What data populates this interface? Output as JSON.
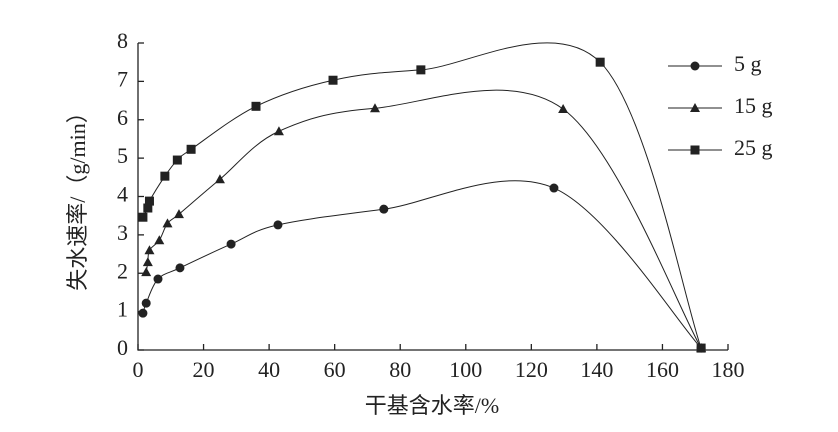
{
  "chart_data": {
    "type": "line",
    "x_label": "干基含水率/%",
    "y_label": "失水速率/（g/min）",
    "xlim": [
      0,
      180
    ],
    "xticks": [
      0,
      20,
      40,
      60,
      80,
      100,
      120,
      140,
      160,
      180
    ],
    "ylim": [
      0,
      8
    ],
    "yticks": [
      0,
      1,
      2,
      3,
      4,
      5,
      6,
      7,
      8
    ],
    "legend": "right",
    "series": [
      {
        "name": "5 g",
        "color": "#222222",
        "marker": "circle",
        "x": [
          1.5,
          2.5,
          6.1,
          12.8,
          28.4,
          42.7,
          75,
          126.9,
          171.8
        ],
        "values": [
          0.96,
          1.22,
          1.85,
          2.14,
          2.76,
          3.26,
          3.67,
          4.22,
          0.05
        ]
      },
      {
        "name": "15 g",
        "color": "#222222",
        "marker": "triangle",
        "x": [
          2.5,
          3,
          3.5,
          6.5,
          9,
          12.5,
          25,
          43,
          72.3,
          129.7,
          171.8
        ],
        "values": [
          2.03,
          2.29,
          2.6,
          2.86,
          3.3,
          3.54,
          4.45,
          5.7,
          6.3,
          6.28,
          0.05
        ]
      },
      {
        "name": "25 g",
        "color": "#222222",
        "marker": "square",
        "x": [
          1.5,
          3,
          3.5,
          8.2,
          12,
          16.2,
          36,
          59.5,
          86.3,
          141,
          171.8
        ],
        "values": [
          3.46,
          3.7,
          3.88,
          4.53,
          4.95,
          5.23,
          6.35,
          7.03,
          7.3,
          7.5,
          0.05
        ]
      }
    ]
  }
}
